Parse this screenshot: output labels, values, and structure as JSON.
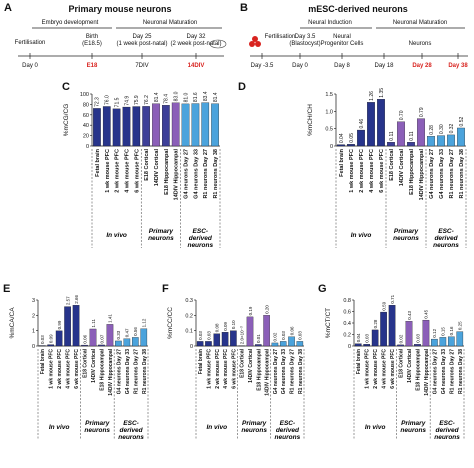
{
  "timelines": [
    {
      "panel": "A",
      "title": "Primary mouse neurons",
      "phases": [
        "Embryo development",
        "Neuronal Maturation"
      ],
      "events": [
        "Fertilisation",
        "Birth",
        "(E18.5)",
        "Day 25",
        "(1 week post-natal)",
        "Day 32",
        "(2 week post-natal)"
      ],
      "days": [
        "Day 0",
        "E18",
        "7DIV",
        "14DIV"
      ]
    },
    {
      "panel": "B",
      "title": "mESC-derived neurons",
      "phases": [
        "Neural Induction",
        "Neuronal Maturation"
      ],
      "events": [
        "Fertilisation",
        "Day 3.5",
        "(Blastocyst)",
        "Neural",
        "Progenitor Cells",
        "Neurons"
      ],
      "days": [
        "Day -3.5",
        "Day 0",
        "Day 8",
        "Day 18",
        "Day 28",
        "Day 38"
      ]
    }
  ],
  "chart_data": [
    {
      "type": "bar",
      "panel": "C",
      "ylabel": "%mCG/CG",
      "categories": [
        "Fetal brain",
        "1 wk mouse PFC",
        "2 wk mouse PFC",
        "4 wk mouse PFC",
        "6 wk mouse PFC",
        "E18 Cortical",
        "14DIV Cortical",
        "E18 Hippocampal",
        "14DIV Hippocampal",
        "G4 neurons Day 27",
        "G4 neurons Day 33",
        "R1 neurons Day 27",
        "R1 neurons Day 38"
      ],
      "values": [
        72.3,
        76.0,
        71.5,
        74.9,
        75.9,
        76.2,
        81.4,
        78.4,
        83.0,
        81.0,
        81.6,
        83.4,
        81.4
      ],
      "value_labels": [
        "72.3",
        "76.0",
        "71.5",
        "74.9",
        "75.9",
        "76.2",
        "81.4",
        "78.4",
        "83.0",
        "81.0",
        "81.6",
        "83.4",
        "81.4"
      ],
      "colors": [
        "#27348b",
        "#27348b",
        "#27348b",
        "#27348b",
        "#27348b",
        "#3d3f98",
        "#8b5fb8",
        "#3d3f98",
        "#8b5fb8",
        "#4ba3dc",
        "#4ba3dc",
        "#4ba3dc",
        "#4ba3dc"
      ],
      "ylim": [
        0,
        100
      ],
      "yticks": [
        0,
        20,
        40,
        60,
        80,
        100
      ],
      "groups": [
        {
          "label": "In vivo",
          "span": 5
        },
        {
          "label": "Primary neurons",
          "span": 4
        },
        {
          "label": "ESC-derived neurons",
          "span": 4
        }
      ]
    },
    {
      "type": "bar",
      "panel": "D",
      "ylabel": "%mCH/CH",
      "categories": [
        "Fetal brain",
        "1 wk mouse PFC",
        "2 wk mouse PFC",
        "4 wk mouse PFC",
        "6 wk mouse PFC",
        "E18 Cortical",
        "14DIV Cortical",
        "E18 Hippocampal",
        "14DIV Hippocampal",
        "G4 neurons Day 27",
        "G4 neurons Day 33",
        "R1 neurons Day 27",
        "R1 neurons Day 38"
      ],
      "values": [
        0.04,
        0.05,
        0.46,
        1.26,
        1.35,
        0.11,
        0.7,
        0.11,
        0.79,
        0.28,
        0.3,
        0.32,
        0.52
      ],
      "value_labels": [
        "0.04",
        "0.05",
        "0.46",
        "1.26",
        "1.35",
        "0.11",
        "0.70",
        "0.11",
        "0.79",
        "0.28",
        "0.30",
        "0.32",
        "0.52"
      ],
      "colors": [
        "#27348b",
        "#27348b",
        "#27348b",
        "#27348b",
        "#27348b",
        "#3d3f98",
        "#8b5fb8",
        "#3d3f98",
        "#8b5fb8",
        "#4ba3dc",
        "#4ba3dc",
        "#4ba3dc",
        "#4ba3dc"
      ],
      "ylim": [
        0,
        1.5
      ],
      "yticks": [
        0,
        0.5,
        {
          "value": 1,
          "label": "1.0"
        },
        1.5
      ],
      "groups": [
        {
          "label": "In vivo",
          "span": 5
        },
        {
          "label": "Primary neurons",
          "span": 4
        },
        {
          "label": "ESC-derived neurons",
          "span": 4
        }
      ]
    },
    {
      "type": "bar",
      "panel": "E",
      "ylabel": "%mCA/CA",
      "categories": [
        "Fetal brain",
        "1 wk mouse PFC",
        "2 wk mouse PFC",
        "4 wk mouse PFC",
        "6 wk mouse PFC",
        "E18 Cortical",
        "14DIV Cortical",
        "E18 Hippocampal",
        "14DIV Hippocampal",
        "G4 neurons Day 27",
        "G4 neurons Day 33",
        "R1 neurons Day 27",
        "R1 neurons Day 38"
      ],
      "values": [
        0.03,
        0.09,
        0.99,
        2.57,
        2.66,
        0.06,
        1.11,
        0.07,
        1.41,
        0.33,
        0.47,
        0.56,
        1.12
      ],
      "value_labels": [
        "0.03",
        "0.09",
        "0.99",
        "2.57",
        "2.66",
        "0.06",
        "1.11",
        "0.07",
        "1.41",
        "0.33",
        "0.47",
        "0.56",
        "1.12"
      ],
      "colors": [
        "#27348b",
        "#27348b",
        "#27348b",
        "#27348b",
        "#27348b",
        "#3d3f98",
        "#8b5fb8",
        "#3d3f98",
        "#8b5fb8",
        "#4ba3dc",
        "#4ba3dc",
        "#4ba3dc",
        "#4ba3dc"
      ],
      "ylim": [
        0,
        3
      ],
      "yticks": [
        0,
        1,
        2,
        3
      ],
      "groups": [
        {
          "label": "In vivo",
          "span": 5
        },
        {
          "label": "Primary neurons",
          "span": 4
        },
        {
          "label": "ESC-derived neurons",
          "span": 4
        }
      ]
    },
    {
      "type": "bar",
      "panel": "F",
      "ylabel": "%mCC/CC",
      "categories": [
        "Fetal brain",
        "1 wk mouse PFC",
        "2 wk mouse PFC",
        "4 wk mouse PFC",
        "6 wk mouse PFC",
        "E18 Cortical",
        "14DIV Cortical",
        "E18 Hippocampal",
        "14DIV Hippocampal",
        "G4 neurons Day 27",
        "G4 neurons Day 33",
        "R1 neurons Day 27",
        "R1 neurons Day 38"
      ],
      "values": [
        0.03,
        0.03,
        0.08,
        0.09,
        0.1,
        0.002,
        0.19,
        0.01,
        0.2,
        0.02,
        0.03,
        0.06,
        0.03
      ],
      "value_labels": [
        "0.03",
        "0.03",
        "0.08",
        "0.09",
        "0.10",
        "2.0×10⁻³",
        "0.19",
        "0.01",
        "0.20",
        "0.02",
        "0.03",
        "0.06",
        "0.03"
      ],
      "colors": [
        "#27348b",
        "#27348b",
        "#27348b",
        "#27348b",
        "#27348b",
        "#3d3f98",
        "#8b5fb8",
        "#3d3f98",
        "#8b5fb8",
        "#4ba3dc",
        "#4ba3dc",
        "#4ba3dc",
        "#4ba3dc"
      ],
      "ylim": [
        0,
        0.3
      ],
      "yticks": [
        0,
        0.1,
        0.2,
        0.3
      ],
      "groups": [
        {
          "label": "In vivo",
          "span": 5
        },
        {
          "label": "Primary neurons",
          "span": 4
        },
        {
          "label": "ESC-derived neurons",
          "span": 4
        }
      ]
    },
    {
      "type": "bar",
      "panel": "G",
      "ylabel": "%mCT/CT",
      "categories": [
        "Fetal brain",
        "1 wk mouse PFC",
        "2 wk mouse PFC",
        "4 wk mouse PFC",
        "6 wk mouse PFC",
        "E18 Cortical",
        "14DIV Cortical",
        "E18 Hippocampal",
        "14DIV Hippocampal",
        "G4 neurons Day 27",
        "G4 neurons Day 33",
        "R1 neurons Day 27",
        "R1 neurons Day 38"
      ],
      "values": [
        0.04,
        0.03,
        0.28,
        0.59,
        0.71,
        0.02,
        0.43,
        0.03,
        0.45,
        0.12,
        0.15,
        0.16,
        0.25
      ],
      "value_labels": [
        "0.04",
        "0.03",
        "0.28",
        "0.59",
        "0.71",
        "0.02",
        "0.43",
        "0.03",
        "0.45",
        "0.12",
        "0.15",
        "0.16",
        "0.25"
      ],
      "colors": [
        "#27348b",
        "#27348b",
        "#27348b",
        "#27348b",
        "#27348b",
        "#3d3f98",
        "#8b5fb8",
        "#3d3f98",
        "#8b5fb8",
        "#4ba3dc",
        "#4ba3dc",
        "#4ba3dc",
        "#4ba3dc"
      ],
      "ylim": [
        0,
        0.8
      ],
      "yticks": [
        0,
        0.2,
        0.4,
        0.6,
        0.8
      ],
      "groups": [
        {
          "label": "In vivo",
          "span": 5
        },
        {
          "label": "Primary neurons",
          "span": 4
        },
        {
          "label": "ESC-derived neurons",
          "span": 4
        }
      ]
    }
  ]
}
